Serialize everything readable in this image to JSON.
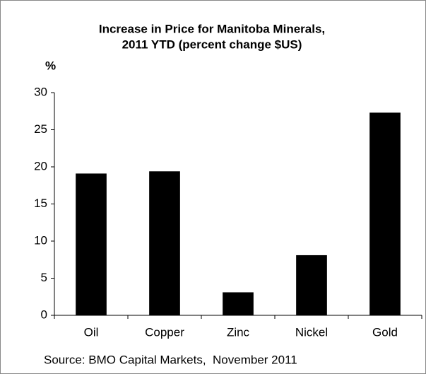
{
  "chart_data": {
    "type": "bar",
    "title": [
      "Increase in Price for Manitoba Minerals,",
      "2011 YTD (percent change $US)"
    ],
    "y_label": "%",
    "categories": [
      "Oil",
      "Copper",
      "Zinc",
      "Nickel",
      "Gold"
    ],
    "values": [
      19.1,
      19.4,
      3.1,
      8.1,
      27.3
    ],
    "color": "#000000",
    "ylim": [
      0,
      30
    ],
    "yticks": [
      0,
      5,
      10,
      15,
      20,
      25,
      30
    ],
    "grid": false,
    "note": "Source: BMO Capital Markets,  November 2011"
  }
}
